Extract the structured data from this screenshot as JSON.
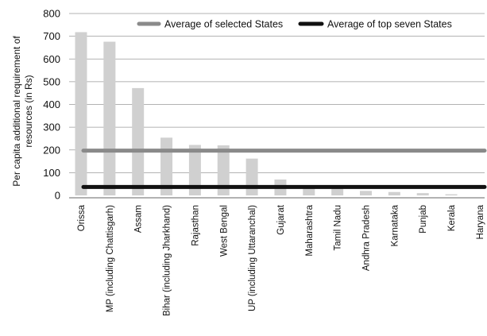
{
  "chart_data": {
    "type": "bar",
    "title": "",
    "xlabel": "",
    "ylabel_lines": [
      "Per capita additional requirement of",
      "resources (in Rs)"
    ],
    "ylim": [
      0,
      800
    ],
    "yticks": [
      0,
      100,
      200,
      300,
      400,
      500,
      600,
      700,
      800
    ],
    "grid": "horizontal",
    "legend": "top",
    "categories": [
      "Orissa",
      "MP (including Chattisgarh)",
      "Assam",
      "Bihar (including Jharkhand)",
      "Rajasthan",
      "West Bengal",
      "UP (including Uttaranchal)",
      "Gujarat",
      "Maharashtra",
      "Tamil Nadu",
      "Andhra Pradesh",
      "Karnataka",
      "Punjab",
      "Kerala",
      "Haryana"
    ],
    "series": [
      {
        "type": "bar",
        "color": "#d0d0d0",
        "values": [
          718,
          676,
          472,
          254,
          222,
          220,
          162,
          70,
          40,
          32,
          20,
          15,
          10,
          5,
          0
        ]
      },
      {
        "type": "hline",
        "name": "Average of selected States",
        "color": "#8a8a8a",
        "value": 197
      },
      {
        "type": "hline",
        "name": "Average of top seven States",
        "color": "#111111",
        "value": 37
      }
    ]
  }
}
